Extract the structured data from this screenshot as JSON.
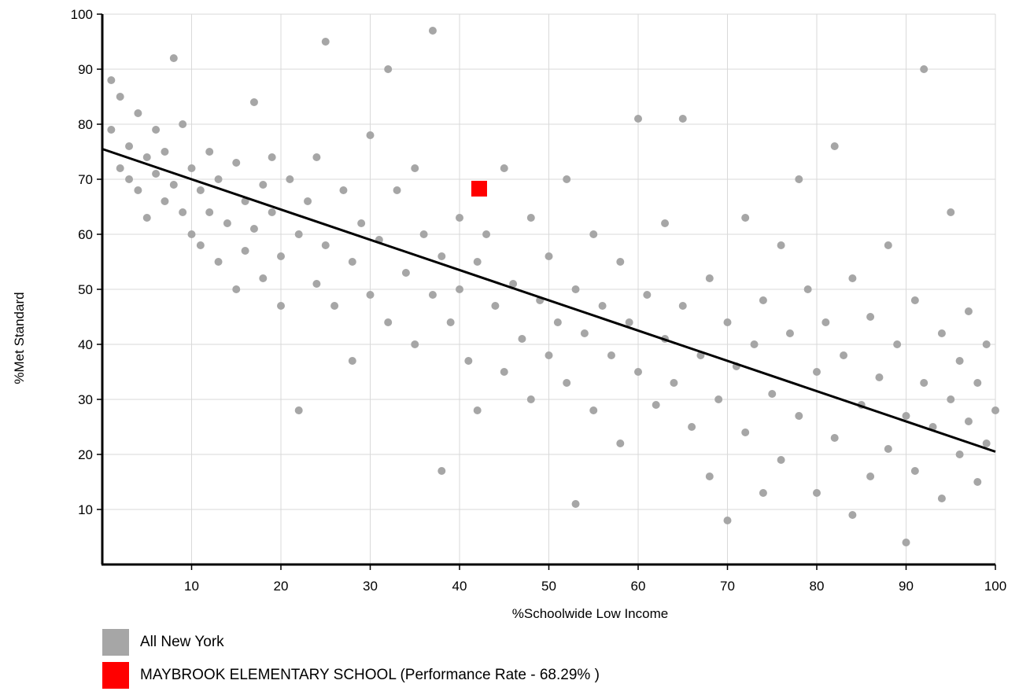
{
  "chart_data": {
    "type": "scatter",
    "title": "",
    "xlabel": "%Schoolwide Low Income",
    "ylabel": "%Met Standard",
    "xlim": [
      0,
      100
    ],
    "ylim": [
      0,
      100
    ],
    "xticks": [
      10,
      20,
      30,
      40,
      50,
      60,
      70,
      80,
      90,
      100
    ],
    "yticks": [
      10,
      20,
      30,
      40,
      50,
      60,
      70,
      80,
      90,
      100
    ],
    "grid": true,
    "legend_position": "bottom-left",
    "trend_line": {
      "x": [
        0,
        100
      ],
      "y": [
        75.5,
        20.5
      ],
      "color": "#000000"
    },
    "series": [
      {
        "name": "All New York",
        "color": "#a6a6a6",
        "marker": "circle",
        "points": [
          [
            1,
            79
          ],
          [
            1,
            88
          ],
          [
            2,
            72
          ],
          [
            2,
            85
          ],
          [
            3,
            70
          ],
          [
            3,
            76
          ],
          [
            4,
            68
          ],
          [
            4,
            82
          ],
          [
            5,
            74
          ],
          [
            5,
            63
          ],
          [
            6,
            71
          ],
          [
            6,
            79
          ],
          [
            7,
            66
          ],
          [
            7,
            75
          ],
          [
            8,
            92
          ],
          [
            8,
            69
          ],
          [
            9,
            64
          ],
          [
            9,
            80
          ],
          [
            10,
            72
          ],
          [
            10,
            60
          ],
          [
            11,
            68
          ],
          [
            11,
            58
          ],
          [
            12,
            75
          ],
          [
            12,
            64
          ],
          [
            13,
            70
          ],
          [
            13,
            55
          ],
          [
            14,
            62
          ],
          [
            15,
            73
          ],
          [
            15,
            50
          ],
          [
            16,
            66
          ],
          [
            16,
            57
          ],
          [
            17,
            84
          ],
          [
            17,
            61
          ],
          [
            18,
            69
          ],
          [
            18,
            52
          ],
          [
            19,
            64
          ],
          [
            19,
            74
          ],
          [
            20,
            56
          ],
          [
            20,
            47
          ],
          [
            21,
            70
          ],
          [
            22,
            60
          ],
          [
            22,
            28
          ],
          [
            23,
            66
          ],
          [
            24,
            51
          ],
          [
            24,
            74
          ],
          [
            25,
            58
          ],
          [
            25,
            95
          ],
          [
            26,
            47
          ],
          [
            27,
            68
          ],
          [
            28,
            55
          ],
          [
            28,
            37
          ],
          [
            29,
            62
          ],
          [
            30,
            49
          ],
          [
            30,
            78
          ],
          [
            31,
            59
          ],
          [
            32,
            44
          ],
          [
            32,
            90
          ],
          [
            33,
            68
          ],
          [
            34,
            53
          ],
          [
            35,
            40
          ],
          [
            35,
            72
          ],
          [
            36,
            60
          ],
          [
            37,
            49
          ],
          [
            37,
            97
          ],
          [
            38,
            56
          ],
          [
            38,
            17
          ],
          [
            39,
            44
          ],
          [
            40,
            63
          ],
          [
            40,
            50
          ],
          [
            41,
            37
          ],
          [
            42,
            55
          ],
          [
            42,
            28
          ],
          [
            43,
            60
          ],
          [
            44,
            47
          ],
          [
            45,
            72
          ],
          [
            45,
            35
          ],
          [
            46,
            51
          ],
          [
            47,
            41
          ],
          [
            48,
            63
          ],
          [
            48,
            30
          ],
          [
            49,
            48
          ],
          [
            50,
            56
          ],
          [
            50,
            38
          ],
          [
            51,
            44
          ],
          [
            52,
            70
          ],
          [
            52,
            33
          ],
          [
            53,
            50
          ],
          [
            53,
            11
          ],
          [
            54,
            42
          ],
          [
            55,
            60
          ],
          [
            55,
            28
          ],
          [
            56,
            47
          ],
          [
            57,
            38
          ],
          [
            58,
            55
          ],
          [
            58,
            22
          ],
          [
            59,
            44
          ],
          [
            60,
            81
          ],
          [
            60,
            35
          ],
          [
            61,
            49
          ],
          [
            62,
            29
          ],
          [
            63,
            41
          ],
          [
            63,
            62
          ],
          [
            64,
            33
          ],
          [
            65,
            47
          ],
          [
            65,
            81
          ],
          [
            66,
            25
          ],
          [
            67,
            38
          ],
          [
            68,
            52
          ],
          [
            68,
            16
          ],
          [
            69,
            30
          ],
          [
            70,
            44
          ],
          [
            70,
            8
          ],
          [
            71,
            36
          ],
          [
            72,
            63
          ],
          [
            72,
            24
          ],
          [
            73,
            40
          ],
          [
            74,
            48
          ],
          [
            74,
            13
          ],
          [
            75,
            31
          ],
          [
            76,
            58
          ],
          [
            76,
            19
          ],
          [
            77,
            42
          ],
          [
            78,
            27
          ],
          [
            78,
            70
          ],
          [
            79,
            50
          ],
          [
            80,
            35
          ],
          [
            80,
            13
          ],
          [
            81,
            44
          ],
          [
            82,
            23
          ],
          [
            82,
            76
          ],
          [
            83,
            38
          ],
          [
            84,
            52
          ],
          [
            84,
            9
          ],
          [
            85,
            29
          ],
          [
            86,
            45
          ],
          [
            86,
            16
          ],
          [
            87,
            34
          ],
          [
            88,
            58
          ],
          [
            88,
            21
          ],
          [
            89,
            40
          ],
          [
            90,
            27
          ],
          [
            90,
            4
          ],
          [
            91,
            48
          ],
          [
            91,
            17
          ],
          [
            92,
            33
          ],
          [
            92,
            90
          ],
          [
            93,
            25
          ],
          [
            94,
            42
          ],
          [
            94,
            12
          ],
          [
            95,
            30
          ],
          [
            95,
            64
          ],
          [
            96,
            20
          ],
          [
            96,
            37
          ],
          [
            97,
            46
          ],
          [
            97,
            26
          ],
          [
            98,
            15
          ],
          [
            98,
            33
          ],
          [
            99,
            40
          ],
          [
            99,
            22
          ],
          [
            100,
            28
          ]
        ]
      },
      {
        "name": "MAYBROOK ELEMENTARY SCHOOL (Performance Rate - 68.29% )",
        "color": "#ff0000",
        "marker": "square",
        "points": [
          [
            42.2,
            68.29
          ]
        ]
      }
    ]
  },
  "legend": {
    "items": [
      {
        "label": "All New York",
        "color": "#a6a6a6"
      },
      {
        "label": "MAYBROOK ELEMENTARY SCHOOL (Performance Rate - 68.29% )",
        "color": "#ff0000"
      }
    ]
  }
}
